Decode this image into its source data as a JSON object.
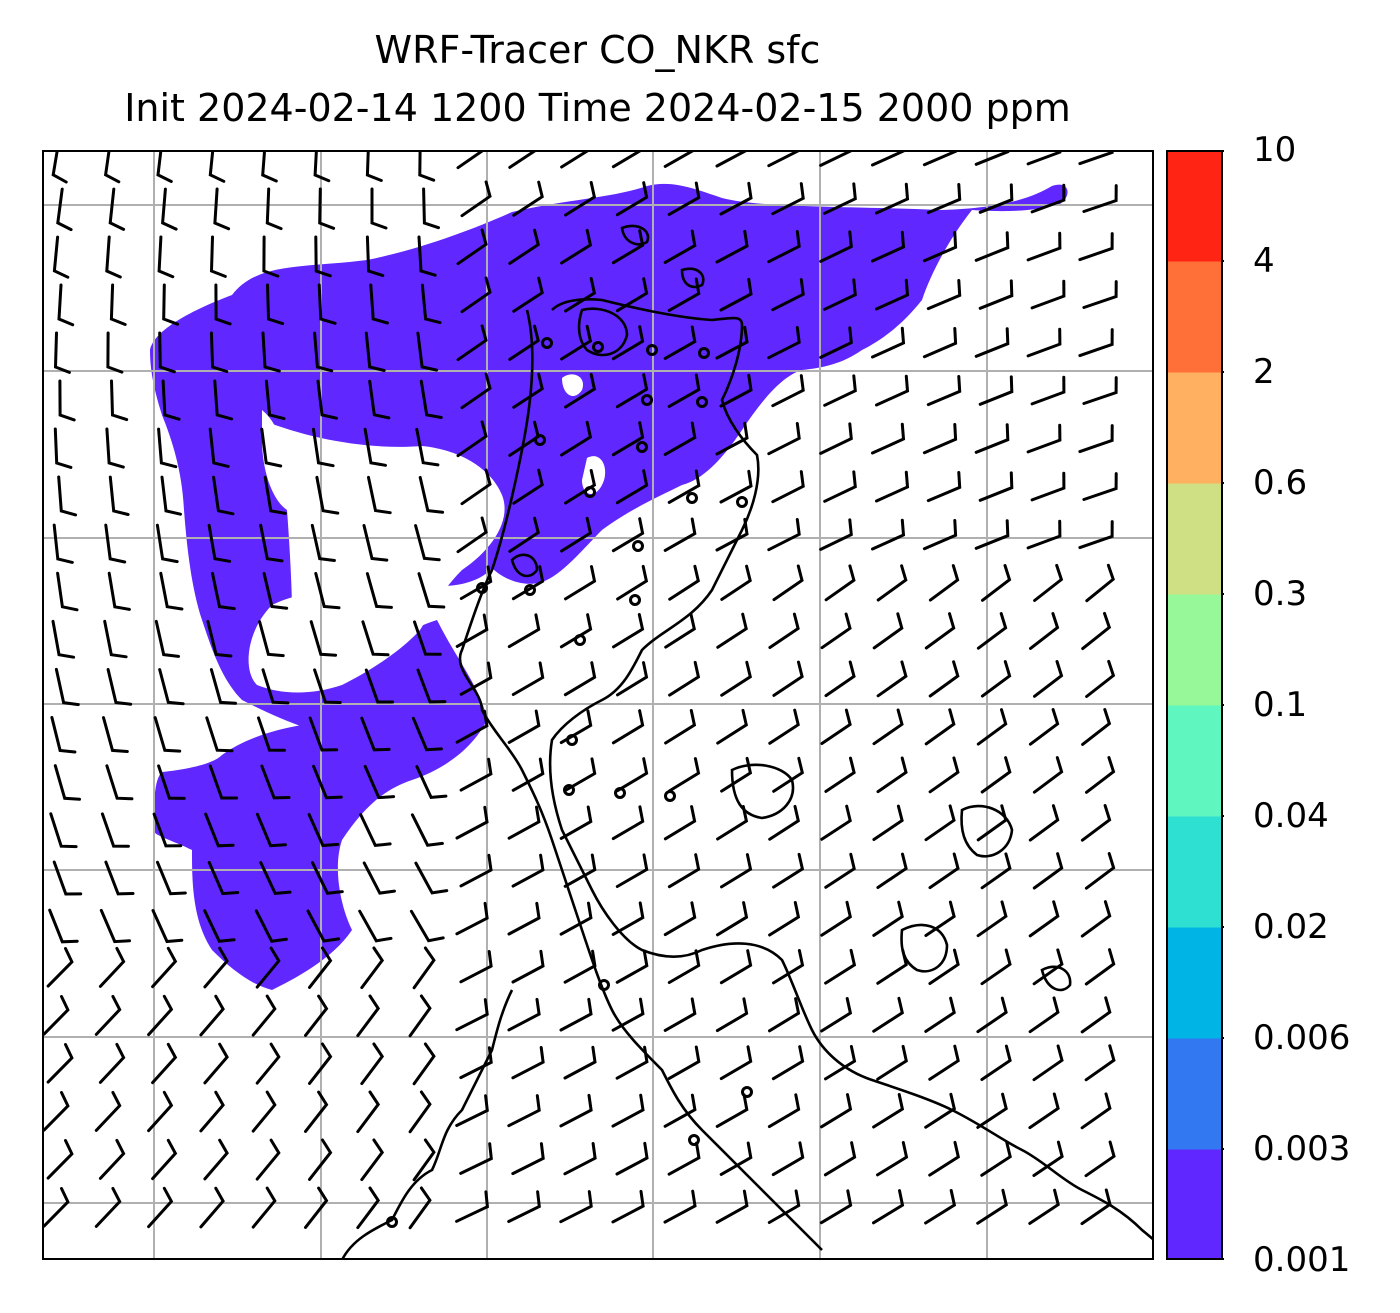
{
  "title": {
    "line1": "WRF-Tracer CO_NKR sfc",
    "line2": "Init 2024-02-14 1200 Time 2024-02-15 2000 ppm"
  },
  "colorbar": {
    "levels": [
      "0.001",
      "0.003",
      "0.006",
      "0.02",
      "0.04",
      "0.1",
      "0.3",
      "0.6",
      "2",
      "4",
      "10"
    ],
    "colors": [
      "#6028ff",
      "#3278f0",
      "#00b4e6",
      "#2ee0d2",
      "#60f6c0",
      "#96f898",
      "#cfe084",
      "#ffb060",
      "#ff7038",
      "#ff2414"
    ]
  },
  "map": {
    "plume_color": "#6028ff",
    "grid_color": "#b0b0b0"
  }
}
